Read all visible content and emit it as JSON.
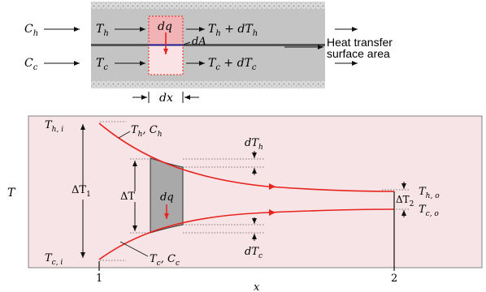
{
  "colors": {
    "hot": "#e8221c",
    "plot_bg": "#f7e4e6",
    "pipe_gray": "#c4c4c4",
    "hatch": "#8f8f8f",
    "element_fill": "#a9a9a9",
    "ink": "#111111",
    "dotted": "#555555",
    "box_top_fill": "#f2b3b6",
    "box_bottom_fill": "#fbe3e5"
  },
  "top": {
    "label_Ch": "C",
    "label_Ch_sub": "h",
    "label_Cc": "C",
    "label_Cc_sub": "c",
    "label_Th": "T",
    "label_Th_sub": "h",
    "label_Tc": "T",
    "label_Tc_sub": "c",
    "label_dq": "dq",
    "label_dA": "dA",
    "label_Th_out": "T",
    "label_Th_out_sub": "h",
    "label_Th_out_rest": " + dT",
    "label_Th_out_sub2": "h",
    "label_Tc_out": "T",
    "label_Tc_out_sub": "c",
    "label_Tc_out_rest": " + dT",
    "label_Tc_out_sub2": "c",
    "heat_transfer_line1": "Heat transfer",
    "heat_transfer_line2": "surface area",
    "label_dx": "dx"
  },
  "plot": {
    "y_axis_label": "T",
    "x_axis_label": "x",
    "x_tick_1": "1",
    "x_tick_2": "2",
    "Thi": "T",
    "Thi_sub": "h, i",
    "Tci": "T",
    "Tci_sub": "c, i",
    "Tho": "T",
    "Tho_sub": "h, o",
    "Tco": "T",
    "Tco_sub": "c, o",
    "hot_curve_label": "T",
    "hot_curve_label_sub": "h",
    "hot_curve_label_rest": ", C",
    "hot_curve_label_sub2": "h",
    "cold_curve_label": "T",
    "cold_curve_label_sub": "c",
    "cold_curve_label_rest": ", C",
    "cold_curve_label_sub2": "c",
    "dT1": "ΔT",
    "dT1_sub": "1",
    "dT2": "ΔT",
    "dT2_sub": "2",
    "dT": "ΔT",
    "dq": "dq",
    "dTh": "dT",
    "dTh_sub": "h",
    "dTc": "dT",
    "dTc_sub": "c"
  }
}
